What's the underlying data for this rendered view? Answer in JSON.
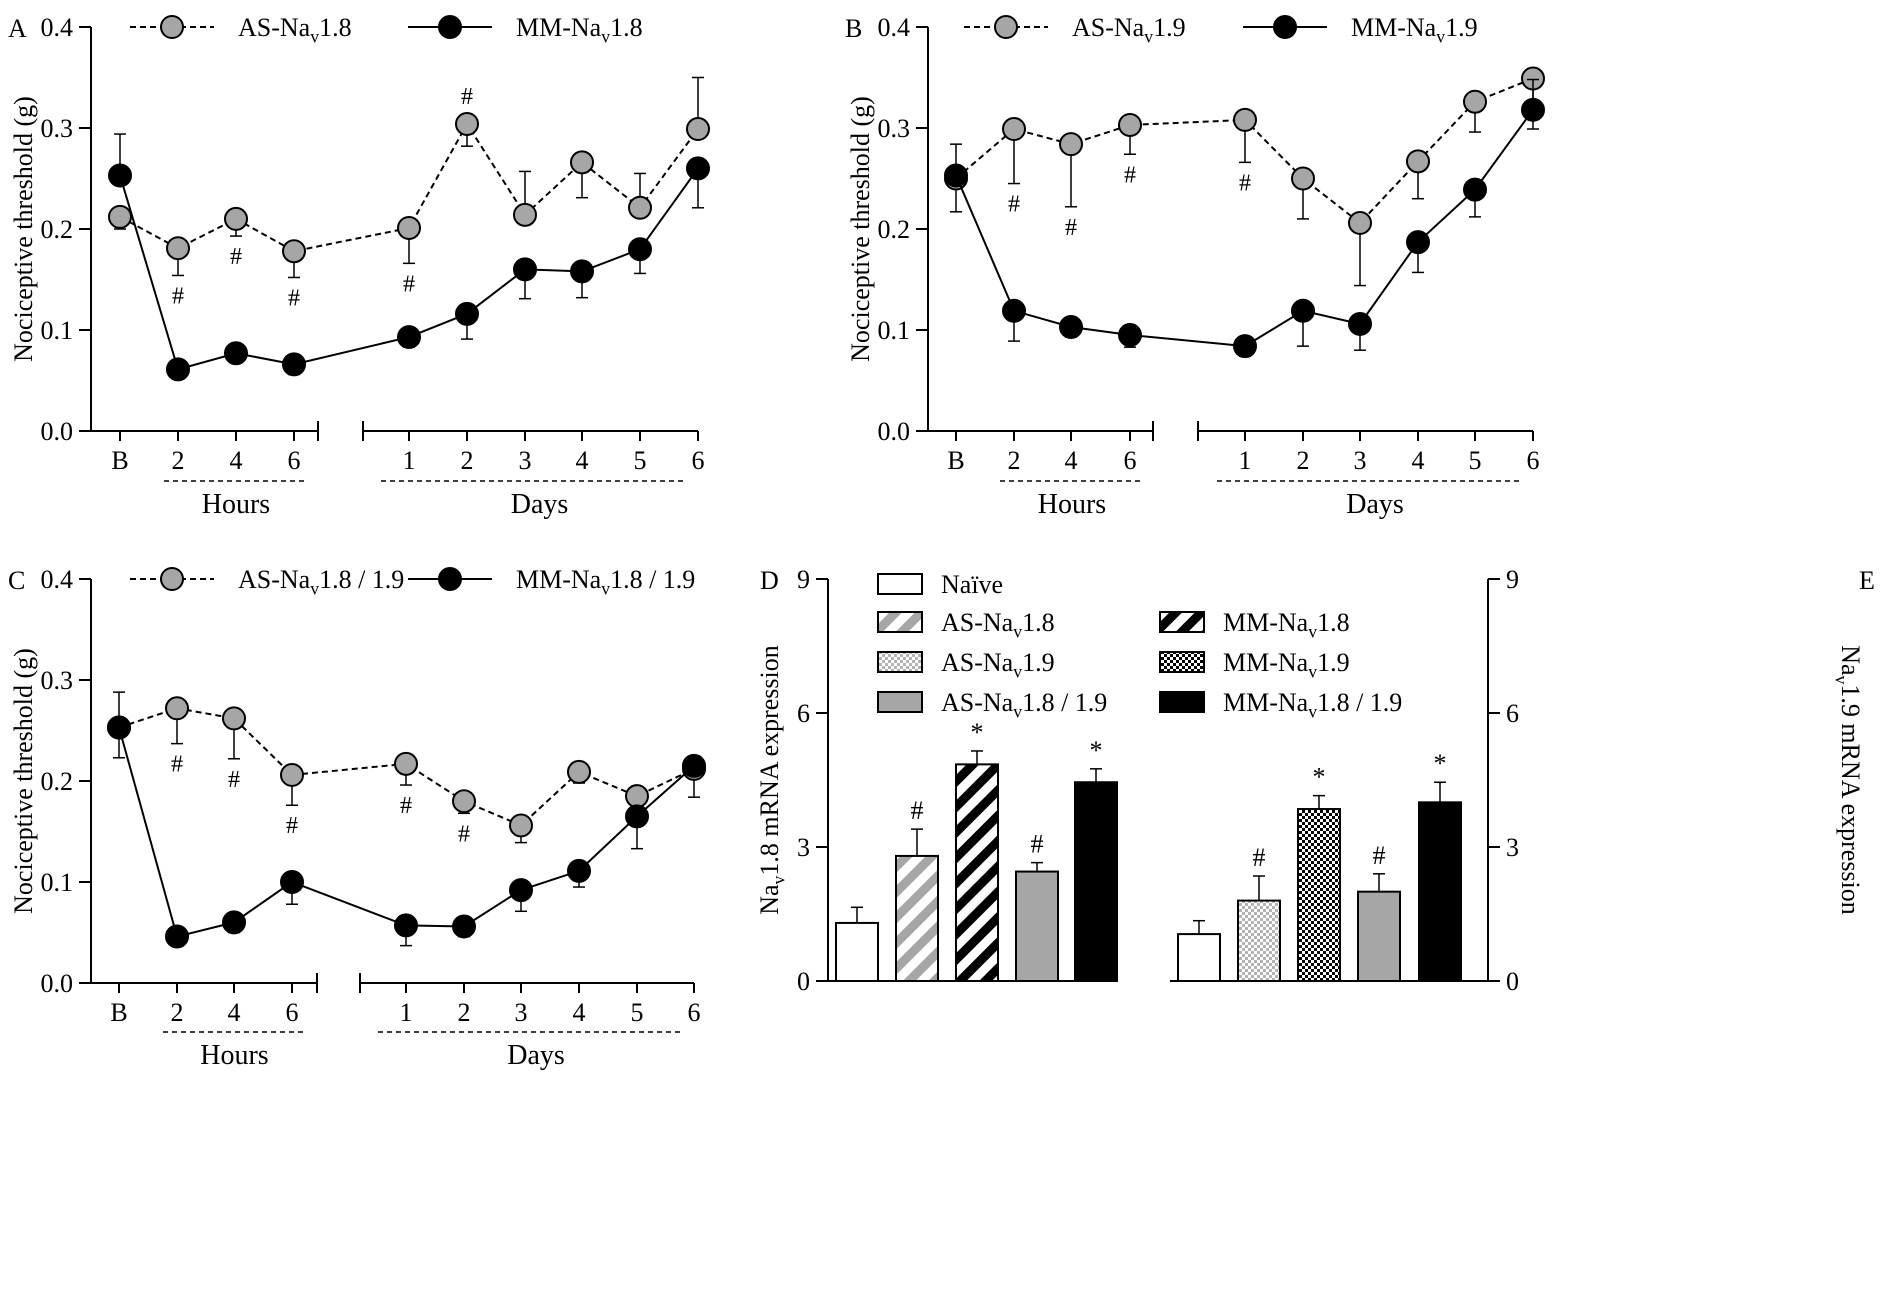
{
  "colors": {
    "as_marker": "#a6a6a6",
    "mm_marker": "#000000",
    "axis": "#000000",
    "gray_bar": "#a6a6a6",
    "light_check": "#b3b3b3"
  },
  "line_x_labels": [
    "B",
    "2",
    "4",
    "6",
    "1",
    "2",
    "3",
    "4",
    "5",
    "6"
  ],
  "chart_data": [
    {
      "type": "line",
      "panel": "A",
      "ylabel": "Nociceptive threshold (g)",
      "ylim": [
        0,
        0.4
      ],
      "yticks": [
        "0.0",
        "0.1",
        "0.2",
        "0.3",
        "0.4"
      ],
      "categories": [
        "B",
        "2",
        "4",
        "6",
        "1",
        "2",
        "3",
        "4",
        "5",
        "6"
      ],
      "group_labels": [
        "Hours",
        "Days"
      ],
      "series": [
        {
          "name": "AS-Nav1.8",
          "name_main": "AS-Na",
          "name_sub": "v",
          "name_post": "1.8",
          "style": "dashed",
          "marker": "gray",
          "values": [
            0.212,
            0.181,
            0.21,
            0.178,
            0.201,
            0.304,
            0.214,
            0.266,
            0.221,
            0.299
          ],
          "errors": [
            0.012,
            0.027,
            0.017,
            0.026,
            0.035,
            0.022,
            0.043,
            0.035,
            0.034,
            0.051
          ],
          "error_dir": [
            "down",
            "down",
            "down",
            "down",
            "down",
            "down",
            "up",
            "down",
            "up",
            "up"
          ],
          "markers": [
            "",
            "#",
            "#",
            "#",
            "#",
            "#",
            "",
            "",
            "",
            ""
          ]
        },
        {
          "name": "MM-Nav1.8",
          "name_main": "MM-Na",
          "name_sub": "v",
          "name_post": "1.8",
          "style": "solid",
          "marker": "black",
          "values": [
            0.253,
            0.061,
            0.077,
            0.066,
            0.093,
            0.116,
            0.16,
            0.158,
            0.18,
            0.26
          ],
          "errors": [
            0.041,
            0.0,
            0.0,
            0.01,
            0.01,
            0.025,
            0.029,
            0.026,
            0.024,
            0.039
          ],
          "error_dir": [
            "up",
            "down",
            "down",
            "down",
            "down",
            "down",
            "down",
            "down",
            "down",
            "down"
          ]
        }
      ]
    },
    {
      "type": "line",
      "panel": "B",
      "ylabel": "Nociceptive threshold (g)",
      "ylim": [
        0,
        0.4
      ],
      "yticks": [
        "0.0",
        "0.1",
        "0.2",
        "0.3",
        "0.4"
      ],
      "categories": [
        "B",
        "2",
        "4",
        "6",
        "1",
        "2",
        "3",
        "4",
        "5",
        "6"
      ],
      "group_labels": [
        "Hours",
        "Days"
      ],
      "series": [
        {
          "name": "AS-Nav1.9",
          "name_main": "AS-Na",
          "name_sub": "v",
          "name_post": "1.9",
          "style": "dashed",
          "marker": "gray",
          "values": [
            0.25,
            0.299,
            0.284,
            0.303,
            0.308,
            0.25,
            0.206,
            0.267,
            0.326,
            0.349
          ],
          "errors": [
            0.033,
            0.054,
            0.062,
            0.029,
            0.042,
            0.04,
            0.062,
            0.037,
            0.03,
            0.05
          ],
          "error_dir": [
            "down",
            "down",
            "down",
            "down",
            "down",
            "down",
            "down",
            "down",
            "down",
            "down"
          ],
          "markers": [
            "",
            "#",
            "#",
            "#",
            "#",
            "",
            "",
            "",
            "",
            ""
          ]
        },
        {
          "name": "MM-Nav1.9",
          "name_main": "MM-Na",
          "name_sub": "v",
          "name_post": "1.9",
          "style": "solid",
          "marker": "black",
          "values": [
            0.253,
            0.119,
            0.103,
            0.095,
            0.084,
            0.119,
            0.106,
            0.187,
            0.239,
            0.318
          ],
          "errors": [
            0.031,
            0.03,
            0.01,
            0.012,
            0.01,
            0.035,
            0.026,
            0.03,
            0.027,
            0.03
          ],
          "error_dir": [
            "up",
            "down",
            "down",
            "down",
            "down",
            "down",
            "down",
            "down",
            "down",
            "up"
          ]
        }
      ]
    },
    {
      "type": "line",
      "panel": "C",
      "ylabel": "Nociceptive threshold (g)",
      "ylim": [
        0,
        0.4
      ],
      "yticks": [
        "0.0",
        "0.1",
        "0.2",
        "0.3",
        "0.4"
      ],
      "categories": [
        "B",
        "2",
        "4",
        "6",
        "1",
        "2",
        "3",
        "4",
        "5",
        "6"
      ],
      "group_labels": [
        "Hours",
        "Days"
      ],
      "series": [
        {
          "name": "AS-Nav1.8 / 1.9",
          "name_main": "AS-Na",
          "name_sub": "v",
          "name_post": "1.8 / 1.9",
          "style": "dashed",
          "marker": "gray",
          "values": [
            0.253,
            0.272,
            0.262,
            0.206,
            0.217,
            0.18,
            0.156,
            0.209,
            0.185,
            0.212
          ],
          "errors": [
            0.035,
            0.035,
            0.04,
            0.03,
            0.021,
            0.012,
            0.017,
            0.011,
            0.0,
            0.028
          ],
          "error_dir": [
            "up",
            "down",
            "down",
            "down",
            "down",
            "down",
            "down",
            "down",
            "down",
            "down"
          ],
          "markers": [
            "",
            "#",
            "#",
            "#",
            "#",
            "#",
            "",
            "",
            "",
            ""
          ]
        },
        {
          "name": "MM-Nav1.8 / 1.9",
          "name_main": "MM-Na",
          "name_sub": "v",
          "name_post": "1.8 / 1.9",
          "style": "solid",
          "marker": "black",
          "values": [
            0.253,
            0.046,
            0.06,
            0.1,
            0.057,
            0.056,
            0.092,
            0.111,
            0.165,
            0.215
          ],
          "errors": [
            0.03,
            0.0,
            0.01,
            0.022,
            0.02,
            0.01,
            0.021,
            0.016,
            0.032,
            0.0
          ],
          "error_dir": [
            "down",
            "down",
            "down",
            "down",
            "down",
            "down",
            "down",
            "down",
            "down",
            "down"
          ]
        }
      ]
    },
    {
      "type": "bar",
      "panel": "D",
      "ylabel_main": "Na",
      "ylabel_sub": "v",
      "ylabel_post": "1.8 mRNA expression",
      "ylim": [
        0,
        9
      ],
      "yticks": [
        "0",
        "3",
        "6",
        "9"
      ],
      "categories": [
        "Naïve",
        "AS-Nav1.8",
        "MM-Nav1.8",
        "AS-Nav1.8 / 1.9",
        "MM-Nav1.8 / 1.9"
      ],
      "patterns": [
        "white",
        "diag-gray",
        "diag-black",
        "gray",
        "black"
      ],
      "values": [
        1.3,
        2.8,
        4.85,
        2.45,
        4.45
      ],
      "errors": [
        0.35,
        0.6,
        0.3,
        0.2,
        0.3
      ],
      "markers": [
        "",
        "#",
        "*",
        "#",
        "*"
      ]
    },
    {
      "type": "bar",
      "panel": "E",
      "ylabel_main": "Na",
      "ylabel_sub": "v",
      "ylabel_post": "1.9 mRNA expression",
      "ylim": [
        0,
        9
      ],
      "yticks": [
        "0",
        "3",
        "6",
        "9"
      ],
      "categories": [
        "Naïve",
        "AS-Nav1.9",
        "MM-Nav1.9",
        "AS-Nav1.8 / 1.9",
        "MM-Nav1.8 / 1.9"
      ],
      "patterns": [
        "white",
        "check-gray",
        "check-black",
        "gray",
        "black"
      ],
      "values": [
        1.05,
        1.8,
        3.85,
        2.0,
        4.0
      ],
      "errors": [
        0.3,
        0.55,
        0.3,
        0.4,
        0.45
      ],
      "markers": [
        "",
        "#",
        "*",
        "#",
        "*"
      ]
    }
  ],
  "bar_legend": [
    {
      "main": "Naïve",
      "sub": "",
      "post": "",
      "pattern": "white"
    },
    {
      "main": "AS-Na",
      "sub": "v",
      "post": "1.8",
      "pattern": "diag-gray"
    },
    {
      "main": "MM-Na",
      "sub": "v",
      "post": "1.8",
      "pattern": "diag-black"
    },
    {
      "main": "AS-Na",
      "sub": "v",
      "post": "1.9",
      "pattern": "check-gray"
    },
    {
      "main": "MM-Na",
      "sub": "v",
      "post": "1.9",
      "pattern": "check-black"
    },
    {
      "main": "AS-Na",
      "sub": "v",
      "post": "1.8 / 1.9",
      "pattern": "gray"
    },
    {
      "main": "MM-Na",
      "sub": "v",
      "post": "1.8 / 1.9",
      "pattern": "black"
    }
  ]
}
